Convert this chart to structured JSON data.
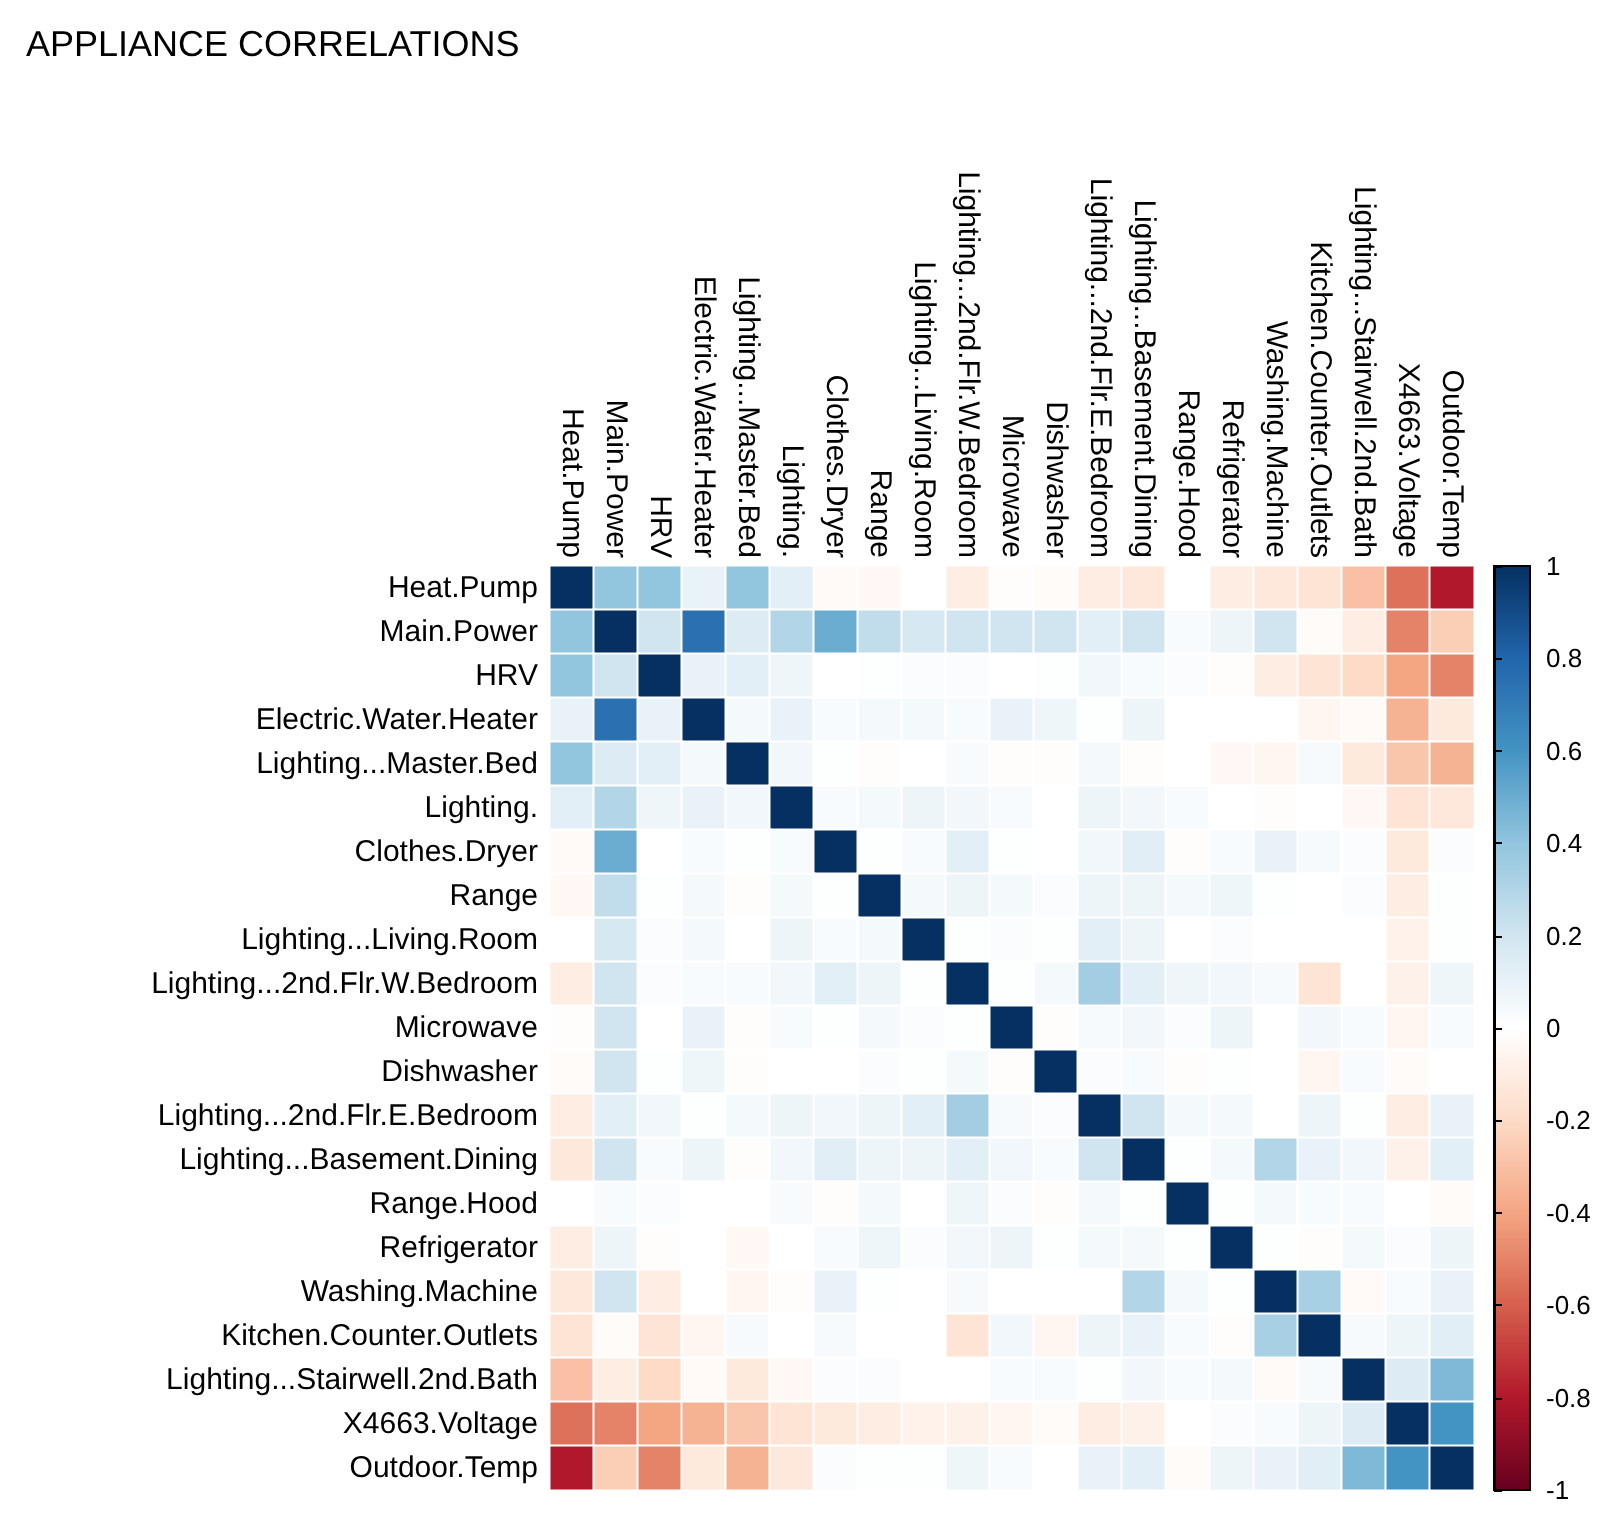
{
  "chart_data": {
    "type": "heatmap",
    "title": "APPLIANCE CORRELATIONS",
    "categories": [
      "Heat.Pump",
      "Main.Power",
      "HRV",
      "Electric.Water.Heater",
      "Lighting...Master.Bed",
      "Lighting.",
      "Clothes.Dryer",
      "Range",
      "Lighting...Living.Room",
      "Lighting...2nd.Flr.W.Bedroom",
      "Microwave",
      "Dishwasher",
      "Lighting...2nd.Flr.E.Bedroom",
      "Lighting...Basement.Dining",
      "Range.Hood",
      "Refrigerator",
      "Washing.Machine",
      "Kitchen.Counter.Outlets",
      "Lighting...Stairwell.2nd.Bath",
      "X4663.Voltage",
      "Outdoor.Temp"
    ],
    "y_categories": [
      "Heat.Pump",
      "Main.Power",
      "HRV",
      "Electric.Water.Heater",
      "Lighting...Master.Bed",
      "Lighting.",
      "Clothes.Dryer",
      "Range",
      "Lighting...Living.Room",
      "Lighting...2nd.Flr.W.Bedroom",
      "Microwave",
      "Dishwasher",
      "Lighting...2nd.Flr.E.Bedroom",
      "Lighting...Basement.Dining",
      "Range.Hood",
      "Refrigerator",
      "Washing.Machine",
      "Kitchen.Counter.Outlets",
      "Lighting...Stairwell.2nd.Bath",
      "X4663.Voltage",
      "Outdoor.Temp"
    ],
    "cells": [
      [
        1,
        0.4,
        0.4,
        0.1,
        0.4,
        0.12,
        -0.03,
        -0.04,
        0,
        -0.1,
        -0.01,
        -0.02,
        -0.1,
        -0.13,
        0,
        -0.1,
        -0.13,
        -0.15,
        -0.3,
        -0.55,
        -0.8
      ],
      [
        0.4,
        1,
        0.2,
        0.75,
        0.15,
        0.3,
        0.5,
        0.25,
        0.18,
        0.2,
        0.2,
        0.2,
        0.12,
        0.2,
        0.03,
        0.08,
        0.2,
        -0.02,
        -0.1,
        -0.5,
        -0.25
      ],
      [
        0.4,
        0.2,
        1,
        0.1,
        0.12,
        0.07,
        0,
        0.01,
        0.02,
        0.02,
        0,
        0.01,
        0.06,
        0.03,
        0.02,
        -0.01,
        -0.1,
        -0.15,
        -0.2,
        -0.4,
        -0.5
      ],
      [
        0.1,
        0.75,
        0.1,
        1,
        0.05,
        0.1,
        0.03,
        0.05,
        0.05,
        0.03,
        0.1,
        0.07,
        0.01,
        0.08,
        0,
        0,
        0,
        -0.05,
        -0.03,
        -0.35,
        -0.12
      ],
      [
        0.4,
        0.15,
        0.12,
        0.05,
        1,
        0.06,
        0.01,
        -0.01,
        0,
        0.03,
        -0.01,
        -0.01,
        0.05,
        -0.01,
        0,
        -0.04,
        -0.05,
        0.04,
        -0.12,
        -0.28,
        -0.35
      ],
      [
        0.12,
        0.3,
        0.07,
        0.1,
        0.06,
        1,
        0.03,
        0.05,
        0.08,
        0.06,
        0.03,
        0,
        0.08,
        0.06,
        0.03,
        0,
        -0.01,
        0,
        -0.04,
        -0.15,
        -0.13
      ],
      [
        -0.03,
        0.5,
        0,
        0.03,
        0.01,
        0.03,
        1,
        0.01,
        0.03,
        0.12,
        0.01,
        0,
        0.06,
        0.13,
        -0.01,
        0.03,
        0.1,
        0.04,
        0.02,
        -0.12,
        0.02
      ],
      [
        -0.04,
        0.25,
        0.01,
        0.05,
        -0.01,
        0.05,
        0.01,
        1,
        0.05,
        0.08,
        0.05,
        0.02,
        0.08,
        0.08,
        0.05,
        0.07,
        0.01,
        0,
        0.02,
        -0.1,
        0.01
      ],
      [
        0,
        0.18,
        0.02,
        0.05,
        0,
        0.08,
        0.03,
        0.05,
        1,
        0.01,
        0.02,
        0.01,
        0.12,
        0.08,
        0,
        0.02,
        0,
        0,
        0,
        -0.07,
        0.01
      ],
      [
        -0.1,
        0.2,
        0.02,
        0.03,
        0.03,
        0.06,
        0.12,
        0.08,
        0.01,
        1,
        0.01,
        0.05,
        0.35,
        0.12,
        0.07,
        0.06,
        0.04,
        -0.15,
        0,
        -0.08,
        0.07
      ],
      [
        -0.01,
        0.2,
        0,
        0.1,
        -0.01,
        0.03,
        0.01,
        0.05,
        0.02,
        0.01,
        1,
        -0.01,
        0.04,
        0.06,
        0.02,
        0.08,
        0,
        0.06,
        0.03,
        -0.05,
        0.03
      ],
      [
        -0.02,
        0.2,
        0.01,
        0.07,
        -0.01,
        0,
        0,
        0.02,
        0.01,
        0.05,
        -0.01,
        1,
        0.02,
        0.03,
        -0.01,
        0.01,
        0,
        -0.05,
        0.03,
        -0.02,
        0
      ],
      [
        -0.1,
        0.12,
        0.06,
        0.01,
        0.05,
        0.08,
        0.06,
        0.08,
        0.12,
        0.35,
        0.04,
        0.02,
        1,
        0.2,
        0.05,
        0.05,
        0,
        0.08,
        0.01,
        -0.1,
        0.1
      ],
      [
        -0.13,
        0.2,
        0.03,
        0.08,
        -0.01,
        0.06,
        0.13,
        0.08,
        0.08,
        0.12,
        0.06,
        0.03,
        0.2,
        1,
        0.01,
        0.05,
        0.3,
        0.1,
        0.06,
        -0.08,
        0.12
      ],
      [
        0,
        0.03,
        0.02,
        0,
        0,
        0.03,
        -0.01,
        0.05,
        0,
        0.07,
        0.02,
        -0.01,
        0.05,
        0.01,
        1,
        0.01,
        0.05,
        0.03,
        0.03,
        0,
        -0.02
      ],
      [
        -0.1,
        0.08,
        -0.01,
        0,
        -0.04,
        0,
        0.03,
        0.07,
        0.02,
        0.06,
        0.08,
        0.01,
        0.05,
        0.05,
        0.01,
        1,
        0.01,
        -0.01,
        0.05,
        0.02,
        0.08
      ],
      [
        -0.13,
        0.2,
        -0.1,
        0,
        -0.05,
        -0.01,
        0.1,
        0.01,
        0,
        0.04,
        0,
        0,
        0,
        0.3,
        0.05,
        0.01,
        1,
        0.33,
        -0.03,
        0.03,
        0.1
      ],
      [
        -0.15,
        -0.02,
        -0.15,
        -0.05,
        0.04,
        0,
        0.04,
        0,
        0,
        -0.15,
        0.06,
        -0.05,
        0.08,
        0.1,
        0.03,
        -0.01,
        0.33,
        1,
        0.04,
        0.08,
        0.13
      ],
      [
        -0.3,
        -0.1,
        -0.2,
        -0.03,
        -0.12,
        -0.04,
        0.02,
        0.02,
        0,
        0,
        0.03,
        0.03,
        0.01,
        0.06,
        0.03,
        0.05,
        -0.03,
        0.04,
        1,
        0.15,
        0.45
      ],
      [
        -0.55,
        -0.5,
        -0.4,
        -0.35,
        -0.28,
        -0.15,
        -0.12,
        -0.1,
        -0.07,
        -0.08,
        -0.05,
        -0.02,
        -0.1,
        -0.08,
        0,
        0.02,
        0.03,
        0.08,
        0.15,
        1,
        0.6
      ],
      [
        -0.8,
        -0.25,
        -0.5,
        -0.12,
        -0.35,
        -0.13,
        0.02,
        0.01,
        0.01,
        0.07,
        0.03,
        0,
        0.1,
        0.12,
        -0.02,
        0.08,
        0.1,
        0.13,
        0.45,
        0.6,
        1
      ]
    ],
    "clim": [
      -1,
      1
    ],
    "cticks": [
      -1,
      -0.8,
      -0.6,
      -0.4,
      -0.2,
      0,
      0.2,
      0.4,
      0.6,
      0.8,
      1
    ]
  }
}
